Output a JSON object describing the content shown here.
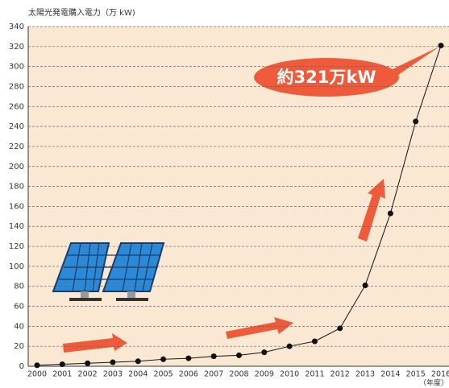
{
  "chart_data": {
    "type": "line",
    "title": "太陽光発電購入電力（万 kW)",
    "x_label": "（年度）",
    "annotation": "約321万kW",
    "categories": [
      "2000",
      "2001",
      "2002",
      "2003",
      "2004",
      "2005",
      "2006",
      "2007",
      "2008",
      "2009",
      "2010",
      "2011",
      "2012",
      "2013",
      "2014",
      "2015",
      "2016"
    ],
    "values": [
      1,
      2,
      3,
      4,
      5,
      7,
      8,
      10,
      11,
      14,
      20,
      25,
      38,
      81,
      153,
      245,
      321
    ],
    "color": "#111111",
    "ylim": [
      0,
      340
    ],
    "yticks": [
      0,
      20,
      40,
      60,
      80,
      100,
      120,
      140,
      160,
      180,
      200,
      220,
      240,
      260,
      280,
      300,
      320,
      340
    ],
    "grid": true
  }
}
